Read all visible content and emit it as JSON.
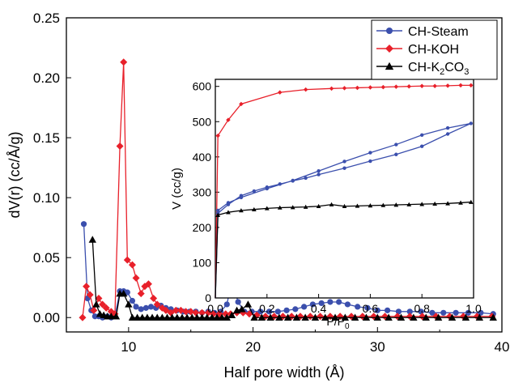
{
  "chart_data": [
    {
      "type": "scatter",
      "role": "main",
      "xlabel": "Half pore width (Å)",
      "ylabel": "dV(r) (cc/Å/g)",
      "xlim": [
        5,
        40
      ],
      "ylim": [
        -0.012,
        0.25
      ],
      "xticks": [
        10,
        20,
        30,
        40
      ],
      "yticks": [
        0.0,
        0.05,
        0.1,
        0.15,
        0.2,
        0.25
      ],
      "ytick_labels": [
        "0.00",
        "0.05",
        "0.10",
        "0.15",
        "0.20",
        "0.25"
      ],
      "grid": false,
      "legend_position": "top-right",
      "series": [
        {
          "name": "CH-Steam",
          "color": "#3b4fad",
          "marker": "circle",
          "x": [
            6.4,
            6.7,
            7.0,
            7.3,
            7.6,
            7.9,
            8.3,
            8.6,
            8.9,
            9.3,
            9.6,
            9.9,
            10.3,
            10.6,
            11.0,
            11.4,
            11.8,
            12.2,
            12.6,
            13.0,
            13.4,
            13.9,
            14.4,
            14.9,
            15.4,
            15.9,
            16.4,
            16.9,
            17.4,
            17.9,
            18.3,
            18.8,
            19.3,
            19.9,
            20.6,
            21.3,
            22.0,
            22.7,
            23.4,
            24.1,
            24.8,
            25.5,
            26.2,
            26.9,
            27.6,
            28.4,
            29.2,
            30.0,
            30.8,
            31.7,
            32.6,
            33.5,
            34.4,
            35.3,
            36.3,
            37.3,
            38.3,
            39.3
          ],
          "y": [
            0.078,
            0.016,
            0.006,
            0.001,
            0.001,
            0.0,
            0.001,
            0.0,
            0.001,
            0.022,
            0.022,
            0.021,
            0.014,
            0.009,
            0.007,
            0.008,
            0.009,
            0.008,
            0.01,
            0.008,
            0.007,
            0.006,
            0.005,
            0.005,
            0.005,
            0.004,
            0.005,
            0.004,
            0.005,
            0.011,
            0.031,
            0.013,
            0.005,
            0.005,
            0.005,
            0.005,
            0.005,
            0.006,
            0.007,
            0.009,
            0.011,
            0.012,
            0.013,
            0.013,
            0.011,
            0.009,
            0.008,
            0.006,
            0.006,
            0.005,
            0.005,
            0.005,
            0.004,
            0.004,
            0.004,
            0.004,
            0.004,
            0.003
          ]
        },
        {
          "name": "CH-KOH",
          "color": "#e8202a",
          "marker": "diamond",
          "x": [
            6.3,
            6.6,
            6.9,
            7.2,
            7.6,
            7.9,
            8.2,
            8.6,
            8.9,
            9.3,
            9.6,
            9.9,
            10.3,
            10.6,
            11.0,
            11.3,
            11.6,
            12.0,
            12.3,
            12.7,
            13.0,
            13.4,
            13.8,
            14.2,
            14.6,
            15.0,
            15.4,
            15.9,
            16.4,
            16.8,
            17.3,
            17.8,
            18.2,
            18.7,
            19.2,
            19.7,
            20.3,
            21.0,
            21.7,
            22.4,
            23.1,
            23.8,
            24.6,
            25.4,
            26.2,
            27.0,
            27.9,
            28.8,
            29.7,
            30.6,
            31.6,
            32.6,
            33.6,
            34.7,
            35.8,
            36.9,
            38.0,
            39.2
          ],
          "y": [
            0.0,
            0.026,
            0.019,
            0.006,
            0.016,
            0.011,
            0.008,
            0.005,
            0.003,
            0.143,
            0.213,
            0.048,
            0.044,
            0.033,
            0.02,
            0.026,
            0.028,
            0.016,
            0.011,
            0.008,
            0.006,
            0.004,
            0.006,
            0.006,
            0.005,
            0.005,
            0.004,
            0.004,
            0.004,
            0.003,
            0.003,
            0.003,
            0.003,
            0.004,
            0.004,
            0.003,
            0.002,
            0.001,
            0.001,
            0.001,
            0.001,
            0.001,
            0.001,
            0.001,
            0.001,
            0.001,
            0.001,
            0.001,
            0.001,
            0.001,
            0.001,
            0.001,
            0.001,
            0.001,
            0.001,
            0.001,
            0.001,
            0.001
          ]
        },
        {
          "name": "CH-K2CO3",
          "color": "#000000",
          "marker": "triangle",
          "x": [
            7.1,
            7.4,
            7.7,
            8.0,
            8.3,
            8.6,
            9.0,
            9.3,
            9.6,
            10.0,
            10.3,
            10.7,
            11.1,
            11.5,
            11.9,
            12.3,
            12.7,
            13.1,
            13.5,
            13.9,
            14.3,
            14.7,
            15.1,
            15.5,
            15.9,
            16.3,
            16.7,
            17.1,
            17.5,
            17.9,
            18.3,
            18.7,
            19.1,
            19.6,
            20.1,
            20.7,
            21.4,
            22.1,
            22.8,
            23.5,
            24.2,
            25.0,
            25.8,
            26.6,
            27.4,
            28.2,
            29.1,
            30.0,
            30.9,
            31.9,
            32.9,
            33.9,
            34.9,
            36.0,
            37.1,
            38.2,
            39.3
          ],
          "y": [
            0.065,
            0.011,
            0.003,
            0.002,
            0.001,
            0.001,
            0.001,
            0.02,
            0.02,
            0.011,
            0.0,
            0.0,
            0.0,
            0.0,
            0.0,
            0.0,
            0.0,
            0.0,
            0.0,
            0.0,
            0.0,
            0.0,
            0.0,
            0.0,
            0.0,
            0.0,
            0.0,
            0.0,
            0.0,
            0.0,
            0.002,
            0.006,
            0.007,
            0.011,
            0.0,
            0.0,
            0.0,
            0.0,
            0.0,
            0.0,
            0.0,
            0.0,
            0.0,
            0.0,
            0.0,
            0.0,
            0.0,
            0.0,
            0.0,
            0.0,
            0.0,
            0.0,
            0.0,
            0.0,
            0.0,
            0.0,
            0.0
          ]
        }
      ]
    },
    {
      "type": "line",
      "role": "inset",
      "xlabel": "P/P0",
      "ylabel": "V (cc/g)",
      "xlim": [
        0.0,
        1.0
      ],
      "ylim": [
        0,
        620
      ],
      "xticks": [
        0.0,
        0.2,
        0.4,
        0.6,
        0.8,
        1.0
      ],
      "xtick_labels": [
        "0.0",
        "0.2",
        "0.4",
        "0.6",
        "0.8",
        "1.0"
      ],
      "yticks": [
        0,
        100,
        200,
        300,
        400,
        500,
        600
      ],
      "grid": false,
      "series": [
        {
          "name": "CH-KOH",
          "color": "#e8202a",
          "marker": "diamond",
          "x": [
            0.0,
            0.01,
            0.05,
            0.1,
            0.25,
            0.35,
            0.45,
            0.5,
            0.55,
            0.6,
            0.65,
            0.7,
            0.75,
            0.8,
            0.85,
            0.9,
            0.95,
            0.99
          ],
          "y": [
            0,
            460,
            505,
            550,
            583,
            591,
            594,
            595,
            596,
            597,
            598,
            599,
            600,
            601,
            601,
            602,
            603,
            603
          ]
        },
        {
          "name": "CH-Steam",
          "color": "#3b4fad",
          "marker": "circle",
          "x": [
            0.0,
            0.01,
            0.05,
            0.1,
            0.15,
            0.2,
            0.25,
            0.3,
            0.35,
            0.4,
            0.5,
            0.6,
            0.7,
            0.8,
            0.9,
            0.99,
            0.9,
            0.8,
            0.7,
            0.6,
            0.5,
            0.4,
            0.3,
            0.2,
            0.1,
            0.05,
            0.01
          ],
          "y": [
            0,
            240,
            265,
            290,
            303,
            314,
            323,
            332,
            340,
            350,
            368,
            388,
            407,
            430,
            465,
            495,
            482,
            462,
            435,
            412,
            387,
            360,
            333,
            310,
            285,
            270,
            248
          ]
        },
        {
          "name": "CH-K2CO3",
          "color": "#000000",
          "marker": "triangle",
          "x": [
            0.0,
            0.01,
            0.05,
            0.1,
            0.15,
            0.2,
            0.25,
            0.3,
            0.35,
            0.4,
            0.45,
            0.5,
            0.55,
            0.6,
            0.65,
            0.7,
            0.75,
            0.8,
            0.85,
            0.9,
            0.95,
            0.99
          ],
          "y": [
            0,
            235,
            243,
            248,
            251,
            254,
            256,
            257,
            258,
            260,
            265,
            260,
            261,
            262,
            263,
            264,
            265,
            266,
            267,
            268,
            270,
            272
          ]
        }
      ]
    }
  ],
  "legend": {
    "items": [
      {
        "label": "CH-Steam",
        "color": "#3b4fad",
        "marker": "circle"
      },
      {
        "label": "CH-KOH",
        "color": "#e8202a",
        "marker": "diamond"
      },
      {
        "label": "CH-K2CO3",
        "color": "#000000",
        "marker": "triangle"
      }
    ]
  }
}
